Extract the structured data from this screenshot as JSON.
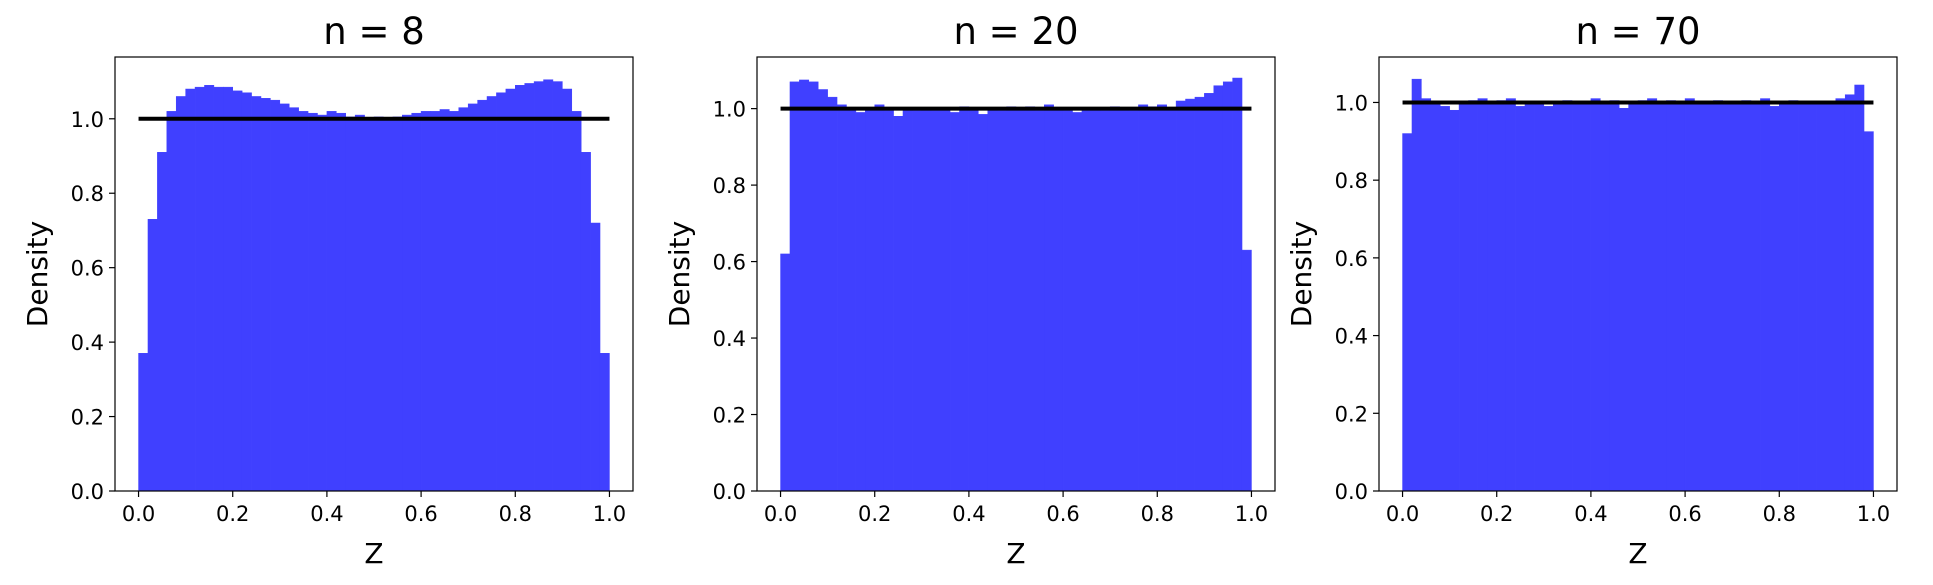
{
  "chart_data": [
    {
      "type": "histogram",
      "title": "n = 8",
      "xlabel": "Z",
      "ylabel": "Density",
      "color": "#4040ff",
      "hline": 1,
      "hline_color": "#000000",
      "bins": [
        0,
        0.02,
        0.04,
        0.06,
        0.08,
        0.1,
        0.12,
        0.14,
        0.16,
        0.18,
        0.2,
        0.22,
        0.24,
        0.26,
        0.28,
        0.3,
        0.32,
        0.34,
        0.36,
        0.38,
        0.4,
        0.42,
        0.44,
        0.46,
        0.48,
        0.5,
        0.52,
        0.54,
        0.56,
        0.58,
        0.6,
        0.62,
        0.64,
        0.66,
        0.68,
        0.7,
        0.72,
        0.74,
        0.76,
        0.78,
        0.8,
        0.82,
        0.84,
        0.86,
        0.88,
        0.9,
        0.92,
        0.94,
        0.96,
        0.98,
        1
      ],
      "values": [
        0.37,
        0.73,
        0.91,
        1.02,
        1.06,
        1.08,
        1.085,
        1.09,
        1.085,
        1.085,
        1.075,
        1.07,
        1.06,
        1.055,
        1.05,
        1.04,
        1.03,
        1.02,
        1.015,
        1.01,
        1.02,
        1.015,
        1.005,
        1.01,
        1.0,
        1.005,
        1.0,
        1.005,
        1.01,
        1.015,
        1.02,
        1.02,
        1.025,
        1.02,
        1.03,
        1.04,
        1.05,
        1.06,
        1.07,
        1.08,
        1.09,
        1.095,
        1.1,
        1.105,
        1.1,
        1.08,
        1.02,
        0.91,
        0.72,
        0.37
      ],
      "xlim": [
        -0.05,
        1.05
      ],
      "ylim": [
        0,
        1.166
      ],
      "xticks": [
        {
          "value": 0,
          "label": "0.0"
        },
        0.2,
        0.4,
        0.6,
        0.8,
        {
          "value": 1,
          "label": "1.0"
        }
      ],
      "yticks": [
        {
          "value": 0,
          "label": "0.0"
        },
        0.2,
        0.4,
        0.6,
        0.8,
        {
          "value": 1,
          "label": "1.0"
        }
      ]
    },
    {
      "type": "histogram",
      "title": "n = 20",
      "xlabel": "Z",
      "ylabel": "Density",
      "color": "#4040ff",
      "hline": 1,
      "hline_color": "#000000",
      "bins": [
        0,
        0.02,
        0.04,
        0.06,
        0.08,
        0.1,
        0.12,
        0.14,
        0.16,
        0.18,
        0.2,
        0.22,
        0.24,
        0.26,
        0.28,
        0.3,
        0.32,
        0.34,
        0.36,
        0.38,
        0.4,
        0.42,
        0.44,
        0.46,
        0.48,
        0.5,
        0.52,
        0.54,
        0.56,
        0.58,
        0.6,
        0.62,
        0.64,
        0.66,
        0.68,
        0.7,
        0.72,
        0.74,
        0.76,
        0.78,
        0.8,
        0.82,
        0.84,
        0.86,
        0.88,
        0.9,
        0.92,
        0.94,
        0.96,
        0.98,
        1
      ],
      "values": [
        0.62,
        1.07,
        1.075,
        1.07,
        1.05,
        1.03,
        1.01,
        1.0,
        0.99,
        1.0,
        1.01,
        0.995,
        0.98,
        1.0,
        0.995,
        1.0,
        0.995,
        1.0,
        0.99,
        1.005,
        1.0,
        0.985,
        1.0,
        0.995,
        1.005,
        1.0,
        1.005,
        0.995,
        1.01,
        1.0,
        0.995,
        0.99,
        1.0,
        1.0,
        0.995,
        1.005,
        1.0,
        0.995,
        1.01,
        1.005,
        1.01,
        1.0,
        1.02,
        1.025,
        1.03,
        1.04,
        1.06,
        1.07,
        1.08,
        0.63
      ],
      "xlim": [
        -0.05,
        1.05
      ],
      "ylim": [
        0,
        1.135
      ],
      "xticks": [
        {
          "value": 0,
          "label": "0.0"
        },
        0.2,
        0.4,
        0.6,
        0.8,
        {
          "value": 1,
          "label": "1.0"
        }
      ],
      "yticks": [
        {
          "value": 0,
          "label": "0.0"
        },
        0.2,
        0.4,
        0.6,
        0.8,
        {
          "value": 1,
          "label": "1.0"
        }
      ]
    },
    {
      "type": "histogram",
      "title": "n = 70",
      "xlabel": "Z",
      "ylabel": "Density",
      "color": "#4040ff",
      "hline": 1,
      "hline_color": "#000000",
      "bins": [
        0,
        0.02,
        0.04,
        0.06,
        0.08,
        0.1,
        0.12,
        0.14,
        0.16,
        0.18,
        0.2,
        0.22,
        0.24,
        0.26,
        0.28,
        0.3,
        0.32,
        0.34,
        0.36,
        0.38,
        0.4,
        0.42,
        0.44,
        0.46,
        0.48,
        0.5,
        0.52,
        0.54,
        0.56,
        0.58,
        0.6,
        0.62,
        0.64,
        0.66,
        0.68,
        0.7,
        0.72,
        0.74,
        0.76,
        0.78,
        0.8,
        0.82,
        0.84,
        0.86,
        0.88,
        0.9,
        0.92,
        0.94,
        0.96,
        0.98,
        1
      ],
      "values": [
        0.92,
        1.06,
        1.01,
        1.0,
        0.99,
        0.98,
        1.0,
        1.005,
        1.01,
        0.995,
        1.005,
        1.01,
        0.99,
        1.0,
        1.0,
        0.99,
        1.0,
        1.005,
        1.0,
        0.995,
        1.01,
        1.0,
        1.005,
        0.985,
        1.0,
        1.005,
        1.01,
        0.995,
        1.005,
        1.0,
        1.01,
        0.995,
        1.0,
        1.005,
        0.995,
        1.0,
        1.005,
        1.0,
        1.01,
        0.99,
        1.0,
        1.005,
        1.0,
        0.995,
        1.0,
        1.0,
        1.01,
        1.02,
        1.045,
        0.925
      ],
      "xlim": [
        -0.05,
        1.05
      ],
      "ylim": [
        0,
        1.117
      ],
      "xticks": [
        {
          "value": 0,
          "label": "0.0"
        },
        0.2,
        0.4,
        0.6,
        0.8,
        {
          "value": 1,
          "label": "1.0"
        }
      ],
      "yticks": [
        {
          "value": 0,
          "label": "0.0"
        },
        0.2,
        0.4,
        0.6,
        0.8,
        {
          "value": 1,
          "label": "1.0"
        }
      ]
    }
  ]
}
